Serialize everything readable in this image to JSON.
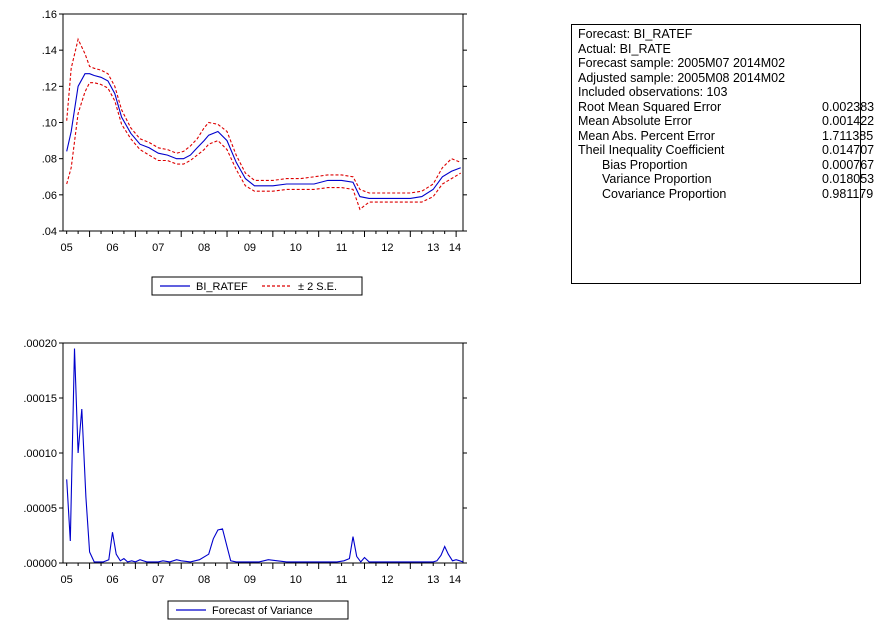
{
  "chart_data": [
    {
      "type": "line",
      "x_ticks": [
        "05",
        "06",
        "07",
        "08",
        "09",
        "10",
        "11",
        "12",
        "13",
        "14"
      ],
      "y_ticks": [
        ".04",
        ".06",
        ".08",
        ".10",
        ".12",
        ".14",
        ".16"
      ],
      "ylim": [
        0.04,
        0.16
      ],
      "xlim": [
        2005.42,
        2014.15
      ],
      "grid": false,
      "legend": "bottom-center",
      "colors": {
        "forecast": "#0000cc",
        "bands": "#dd0000"
      },
      "series": [
        {
          "name": "BI_RATEF",
          "style": "solid",
          "x": [
            2005.5,
            2005.6,
            2005.75,
            2005.9,
            2006.0,
            2006.1,
            2006.25,
            2006.4,
            2006.55,
            2006.7,
            2006.9,
            2007.1,
            2007.3,
            2007.5,
            2007.7,
            2007.9,
            2008.05,
            2008.2,
            2008.35,
            2008.5,
            2008.6,
            2008.8,
            2009.0,
            2009.2,
            2009.4,
            2009.6,
            2009.8,
            2010.0,
            2010.3,
            2010.6,
            2010.9,
            2011.2,
            2011.5,
            2011.75,
            2011.9,
            2012.1,
            2012.4,
            2012.7,
            2013.0,
            2013.25,
            2013.5,
            2013.7,
            2013.9,
            2014.1
          ],
          "values": [
            0.084,
            0.095,
            0.12,
            0.127,
            0.127,
            0.126,
            0.125,
            0.123,
            0.116,
            0.103,
            0.094,
            0.088,
            0.086,
            0.083,
            0.082,
            0.08,
            0.08,
            0.082,
            0.086,
            0.09,
            0.093,
            0.095,
            0.09,
            0.078,
            0.069,
            0.065,
            0.065,
            0.065,
            0.066,
            0.066,
            0.066,
            0.068,
            0.068,
            0.067,
            0.059,
            0.058,
            0.058,
            0.058,
            0.058,
            0.059,
            0.063,
            0.07,
            0.073,
            0.075
          ]
        },
        {
          "name": "± 2 S.E.",
          "style": "dashed",
          "x": [
            2005.5,
            2005.6,
            2005.75,
            2005.9,
            2006.0,
            2006.1,
            2006.25,
            2006.4,
            2006.55,
            2006.7,
            2006.9,
            2007.1,
            2007.3,
            2007.5,
            2007.7,
            2007.9,
            2008.05,
            2008.2,
            2008.35,
            2008.5,
            2008.6,
            2008.8,
            2009.0,
            2009.2,
            2009.4,
            2009.6,
            2009.8,
            2010.0,
            2010.3,
            2010.6,
            2010.9,
            2011.2,
            2011.5,
            2011.75,
            2011.9,
            2012.1,
            2012.4,
            2012.7,
            2013.0,
            2013.25,
            2013.5,
            2013.7,
            2013.9,
            2014.1
          ],
          "values": [
            0.101,
            0.13,
            0.146,
            0.138,
            0.131,
            0.13,
            0.129,
            0.127,
            0.12,
            0.107,
            0.097,
            0.091,
            0.089,
            0.086,
            0.085,
            0.083,
            0.084,
            0.087,
            0.091,
            0.097,
            0.1,
            0.099,
            0.095,
            0.082,
            0.072,
            0.068,
            0.068,
            0.068,
            0.069,
            0.069,
            0.07,
            0.071,
            0.071,
            0.07,
            0.063,
            0.061,
            0.061,
            0.061,
            0.061,
            0.062,
            0.066,
            0.075,
            0.08,
            0.078
          ]
        },
        {
          "name": "± 2 S.E.",
          "style": "dashed",
          "x": [
            2005.5,
            2005.6,
            2005.75,
            2005.9,
            2006.0,
            2006.1,
            2006.25,
            2006.4,
            2006.55,
            2006.7,
            2006.9,
            2007.1,
            2007.3,
            2007.5,
            2007.7,
            2007.9,
            2008.05,
            2008.2,
            2008.35,
            2008.5,
            2008.6,
            2008.8,
            2009.0,
            2009.2,
            2009.4,
            2009.6,
            2009.8,
            2010.0,
            2010.3,
            2010.6,
            2010.9,
            2011.2,
            2011.5,
            2011.75,
            2011.9,
            2012.1,
            2012.4,
            2012.7,
            2013.0,
            2013.25,
            2013.5,
            2013.7,
            2013.9,
            2014.1
          ],
          "values": [
            0.066,
            0.075,
            0.105,
            0.117,
            0.122,
            0.122,
            0.121,
            0.119,
            0.112,
            0.099,
            0.091,
            0.085,
            0.082,
            0.079,
            0.079,
            0.077,
            0.077,
            0.079,
            0.082,
            0.085,
            0.088,
            0.09,
            0.085,
            0.074,
            0.065,
            0.062,
            0.062,
            0.062,
            0.063,
            0.063,
            0.063,
            0.064,
            0.064,
            0.063,
            0.052,
            0.056,
            0.056,
            0.056,
            0.056,
            0.056,
            0.059,
            0.066,
            0.069,
            0.072
          ]
        }
      ]
    },
    {
      "type": "line",
      "x_ticks": [
        "05",
        "06",
        "07",
        "08",
        "09",
        "10",
        "11",
        "12",
        "13",
        "14"
      ],
      "y_ticks": [
        ".00000",
        ".00005",
        ".00010",
        ".00015",
        ".00020"
      ],
      "ylim": [
        0,
        0.0002
      ],
      "xlim": [
        2005.42,
        2014.15
      ],
      "grid": false,
      "legend": "bottom-center",
      "colors": {
        "line": "#0000cc"
      },
      "series": [
        {
          "name": "Forecast of Variance",
          "style": "solid",
          "x": [
            2005.5,
            2005.58,
            2005.67,
            2005.75,
            2005.83,
            2005.92,
            2006.0,
            2006.1,
            2006.2,
            2006.3,
            2006.42,
            2006.5,
            2006.58,
            2006.67,
            2006.75,
            2006.83,
            2006.92,
            2007.0,
            2007.1,
            2007.25,
            2007.4,
            2007.5,
            2007.6,
            2007.75,
            2007.9,
            2008.0,
            2008.2,
            2008.4,
            2008.6,
            2008.7,
            2008.8,
            2008.9,
            2009.0,
            2009.08,
            2009.2,
            2009.35,
            2009.5,
            2009.7,
            2009.9,
            2010.1,
            2010.3,
            2010.5,
            2010.7,
            2010.9,
            2011.0,
            2011.2,
            2011.4,
            2011.55,
            2011.67,
            2011.75,
            2011.83,
            2011.92,
            2012.0,
            2012.1,
            2012.2,
            2012.4,
            2012.6,
            2012.8,
            2013.0,
            2013.2,
            2013.35,
            2013.5,
            2013.58,
            2013.67,
            2013.75,
            2013.83,
            2013.92,
            2014.0,
            2014.08,
            2014.15
          ],
          "values": [
            7.6e-05,
            2e-05,
            0.000195,
            0.0001,
            0.00014,
            6e-05,
            1e-05,
            1e-06,
            1e-06,
            1e-06,
            3e-06,
            2.8e-05,
            8e-06,
            2e-06,
            4e-06,
            1e-06,
            2e-06,
            1e-06,
            3e-06,
            1e-06,
            1e-06,
            1e-06,
            2e-06,
            1e-06,
            3e-06,
            2e-06,
            1e-06,
            3e-06,
            8e-06,
            2.2e-05,
            3e-05,
            3.1e-05,
            1.5e-05,
            2e-06,
            1e-06,
            1e-06,
            1e-06,
            1e-06,
            3e-06,
            2e-06,
            1e-06,
            1e-06,
            1e-06,
            1e-06,
            1e-06,
            1e-06,
            1e-06,
            2e-06,
            4e-06,
            2.4e-05,
            6e-06,
            1e-06,
            5e-06,
            1e-06,
            1e-06,
            1e-06,
            1e-06,
            1e-06,
            1e-06,
            1e-06,
            1e-06,
            1e-06,
            2e-06,
            7e-06,
            1.5e-05,
            8e-06,
            2e-06,
            3e-06,
            2e-06,
            1e-06
          ]
        }
      ]
    }
  ],
  "forecast_stats": {
    "lines": [
      "Forecast: BI_RATEF",
      "Actual: BI_RATE",
      "Forecast sample: 2005M07 2014M02",
      "Adjusted sample: 2005M08 2014M02",
      "Included observations: 103"
    ],
    "rows": [
      {
        "label": "Root Mean Squared Error",
        "value": "0.002383",
        "indent": false
      },
      {
        "label": "Mean Absolute Error",
        "value": "0.001422",
        "indent": false
      },
      {
        "label": "Mean Abs. Percent Error",
        "value": "1.711385",
        "indent": false
      },
      {
        "label": "Theil Inequality Coefficient",
        "value": "0.014707",
        "indent": false
      },
      {
        "label": "Bias Proportion",
        "value": "0.000767",
        "indent": true
      },
      {
        "label": "Variance Proportion",
        "value": "0.018053",
        "indent": true
      },
      {
        "label": "Covariance Proportion",
        "value": "0.981179",
        "indent": true
      }
    ]
  }
}
